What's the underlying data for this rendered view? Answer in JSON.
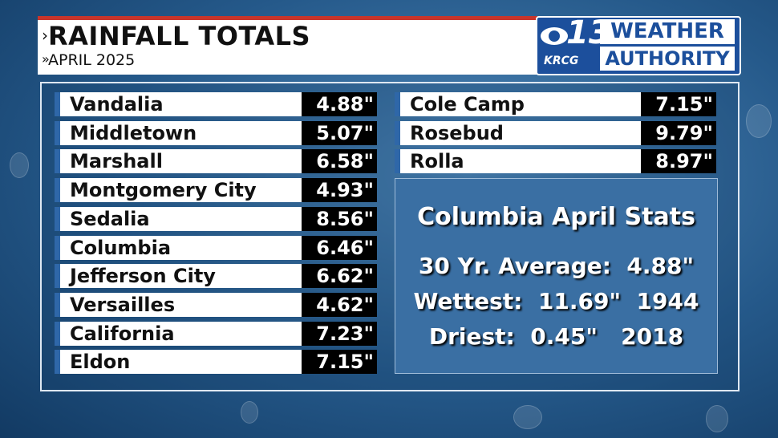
{
  "header": {
    "title": "RAINFALL TOTALS",
    "subtitle": "APRIL 2025"
  },
  "logo": {
    "channel": "13",
    "station": "KRCG",
    "line1": "WEATHER",
    "line2": "AUTHORITY"
  },
  "table": {
    "left": [
      [
        "Vandalia",
        "4.88\""
      ],
      [
        "Middletown",
        "5.07\""
      ],
      [
        "Marshall",
        "6.58\""
      ],
      [
        "Montgomery City",
        "4.93\""
      ],
      [
        "Sedalia",
        "8.56\""
      ],
      [
        "Columbia",
        "6.46\""
      ],
      [
        "Jefferson City",
        "6.62\""
      ],
      [
        "Versailles",
        "4.62\""
      ],
      [
        "California",
        "7.23\""
      ],
      [
        "Eldon",
        "7.15\""
      ]
    ],
    "right": [
      [
        "Cole Camp",
        "7.15\""
      ],
      [
        "Rosebud",
        "9.79\""
      ],
      [
        "Rolla",
        "8.97\""
      ]
    ]
  },
  "stats": {
    "title": "Columbia April Stats",
    "lines": [
      "30 Yr. Average:  4.88\"",
      "Wettest:  11.69\"  1944",
      "Driest:  0.45\"   2018"
    ]
  }
}
